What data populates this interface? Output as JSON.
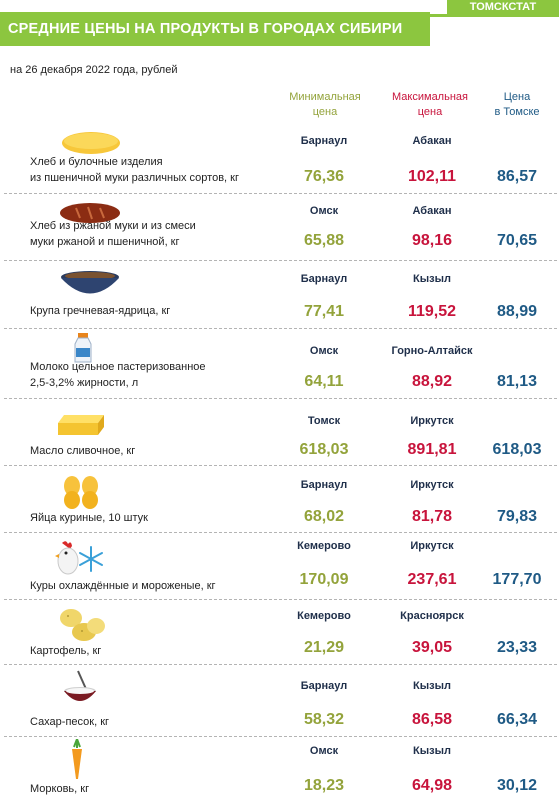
{
  "header": {
    "brand": "ТОМСКСТАТ",
    "title": "СРЕДНИЕ ЦЕНЫ НА ПРОДУКТЫ В ГОРОДАХ СИБИРИ",
    "subtitle": "на 26 декабря 2022 года, рублей"
  },
  "columns": {
    "min_line1": "Минимальная",
    "min_line2": "цена",
    "max_line1": "Максимальная",
    "max_line2": "цена",
    "tomsk_line1": "Цена",
    "tomsk_line2": "в Томске"
  },
  "colors": {
    "accent": "#8cc63f",
    "min": "#93a33b",
    "max": "#c8143c",
    "tomsk": "#1f5a85"
  },
  "products": [
    {
      "name1": "Хлеб и булочные изделия",
      "name2": "из пшеничной муки различных сортов, кг",
      "icon": "white-bread-icon",
      "min_city": "Барнаул",
      "min_price": "76,36",
      "max_city": "Абакан",
      "max_price": "102,11",
      "tomsk_price": "86,57"
    },
    {
      "name1": "Хлеб из ржаной муки и из смеси",
      "name2": "муки ржаной и пшеничной,  кг",
      "icon": "rye-bread-icon",
      "min_city": "Омск",
      "min_price": "65,88",
      "max_city": "Абакан",
      "max_price": "98,16",
      "tomsk_price": "70,65"
    },
    {
      "name1": "",
      "name2": "Крупа гречневая-ядрица, кг",
      "icon": "buckwheat-bowl-icon",
      "min_city": "Барнаул",
      "min_price": "77,41",
      "max_city": "Кызыл",
      "max_price": "119,52",
      "tomsk_price": "88,99"
    },
    {
      "name1": "Молоко цельное пастеризованное",
      "name2": "2,5-3,2% жирности,  л",
      "icon": "milk-bottle-icon",
      "min_city": "Омск",
      "min_price": "64,11",
      "max_city": "Горно-Алтайск",
      "max_price": "88,92",
      "tomsk_price": "81,13"
    },
    {
      "name1": "",
      "name2": "Масло сливочное, кг",
      "icon": "butter-icon",
      "min_city": "Томск",
      "min_price": "618,03",
      "max_city": "Иркутск",
      "max_price": "891,81",
      "tomsk_price": "618,03"
    },
    {
      "name1": "",
      "name2": "Яйца куриные,  10 штук",
      "icon": "eggs-icon",
      "min_city": "Барнаул",
      "min_price": "68,02",
      "max_city": "Иркутск",
      "max_price": "81,78",
      "tomsk_price": "79,83"
    },
    {
      "name1": "",
      "name2": "Куры охлаждённые  и мороженые, кг",
      "icon": "chicken-snowflake-icon",
      "min_city": "Кемерово",
      "min_price": "170,09",
      "max_city": "Иркутск",
      "max_price": "237,61",
      "tomsk_price": "177,70"
    },
    {
      "name1": "",
      "name2": "Картофель, кг",
      "icon": "potatoes-icon",
      "min_city": "Кемерово",
      "min_price": "21,29",
      "max_city": "Красноярск",
      "max_price": "39,05",
      "tomsk_price": "23,33"
    },
    {
      "name1": "",
      "name2": "Сахар-песок, кг",
      "icon": "sugar-cup-icon",
      "min_city": "Барнаул",
      "min_price": "58,32",
      "max_city": "Кызыл",
      "max_price": "86,58",
      "tomsk_price": "66,34"
    },
    {
      "name1": "",
      "name2": "Морковь, кг",
      "icon": "carrot-icon",
      "min_city": "Омск",
      "min_price": "18,23",
      "max_city": "Кызыл",
      "max_price": "64,98",
      "tomsk_price": "30,12"
    }
  ]
}
